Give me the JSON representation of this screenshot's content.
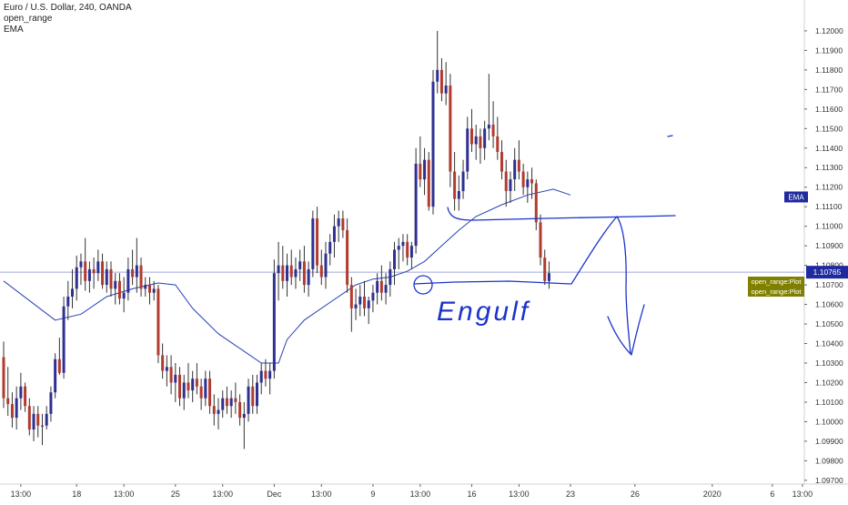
{
  "legend": {
    "symbol": "Euro / U.S. Dollar, 240, OANDA",
    "indicator_1": "open_range",
    "indicator_2": "EMA"
  },
  "colors": {
    "up_candle": "#2e3192",
    "down_candle": "#b23b2f",
    "wick": "#333333",
    "ema_line": "#2541b2",
    "price_line": "#9fa8da",
    "ema_tag": "#1f2a9e",
    "price_tag": "#1f2a9e",
    "open_range_tag": "#808000",
    "drawing": "#1a33cc"
  },
  "chart_data": {
    "type": "candlestick",
    "symbol": "EURUSD",
    "interval": "240",
    "ylim": [
      1.0969,
      1.1213
    ],
    "y_ticks": [
      1.12,
      1.119,
      1.118,
      1.117,
      1.116,
      1.115,
      1.114,
      1.113,
      1.112,
      1.111,
      1.11,
      1.109,
      1.108,
      1.107,
      1.106,
      1.105,
      1.104,
      1.103,
      1.102,
      1.101,
      1.1,
      1.099,
      1.098,
      1.097
    ],
    "y_tick_labels": [
      "1.12000",
      "1.11900",
      "1.11800",
      "1.11700",
      "1.11600",
      "1.11500",
      "1.11400",
      "1.11300",
      "1.11200",
      "1.11100",
      "1.11000",
      "1.10900",
      "1.10800",
      "1.10700",
      "1.10600",
      "1.10500",
      "1.10400",
      "1.10300",
      "1.10200",
      "1.10100",
      "1.10000",
      "1.09900",
      "1.09800",
      "1.09700"
    ],
    "x_ticks": [
      {
        "label": "13:00",
        "bar": 4
      },
      {
        "label": "18",
        "bar": 17
      },
      {
        "label": "13:00",
        "bar": 28
      },
      {
        "label": "25",
        "bar": 40
      },
      {
        "label": "13:00",
        "bar": 51
      },
      {
        "label": "Dec",
        "bar": 63
      },
      {
        "label": "13:00",
        "bar": 74
      },
      {
        "label": "9",
        "bar": 86
      },
      {
        "label": "13:00",
        "bar": 97
      },
      {
        "label": "16",
        "bar": 109
      },
      {
        "label": "13:00",
        "bar": 120
      },
      {
        "label": "23",
        "bar": 132
      },
      {
        "label": "26",
        "bar": 147
      },
      {
        "label": "2020",
        "bar": 165
      },
      {
        "label": "6",
        "bar": 179
      },
      {
        "label": "13:00",
        "bar": 186
      }
    ],
    "last_price": 1.10765,
    "last_price_label": "1.10765",
    "ema_tag_label": "EMA",
    "ema_tag_value": 1.1115,
    "open_range_tags": [
      "open_range:Plot",
      "open_range:Plot"
    ],
    "annotation_text": "Engulf",
    "ema": [
      [
        0,
        1.1072
      ],
      [
        6,
        1.1062
      ],
      [
        12,
        1.1052
      ],
      [
        18,
        1.1055
      ],
      [
        24,
        1.1064
      ],
      [
        30,
        1.1068
      ],
      [
        36,
        1.1071
      ],
      [
        40,
        1.107
      ],
      [
        44,
        1.1058
      ],
      [
        50,
        1.1045
      ],
      [
        56,
        1.1036
      ],
      [
        60,
        1.103
      ],
      [
        64,
        1.103
      ],
      [
        66,
        1.1042
      ],
      [
        70,
        1.1052
      ],
      [
        76,
        1.1061
      ],
      [
        82,
        1.107
      ],
      [
        86,
        1.1073
      ],
      [
        90,
        1.1074
      ],
      [
        94,
        1.1077
      ],
      [
        98,
        1.1082
      ],
      [
        102,
        1.109
      ],
      [
        106,
        1.1098
      ],
      [
        110,
        1.1105
      ],
      [
        116,
        1.1111
      ],
      [
        122,
        1.1116
      ],
      [
        128,
        1.1119
      ],
      [
        132,
        1.1116
      ]
    ],
    "candles": [
      [
        1.1033,
        1.1041,
        1.1007,
        1.1012
      ],
      [
        1.1012,
        1.1028,
        1.1003,
        1.1009
      ],
      [
        1.1009,
        1.1015,
        1.0997,
        1.1002
      ],
      [
        1.1002,
        1.1018,
        1.0996,
        1.1012
      ],
      [
        1.1012,
        1.1025,
        1.1006,
        1.1018
      ],
      [
        1.1018,
        1.102,
        1.1005,
        1.1008
      ],
      [
        1.1008,
        1.1012,
        1.0993,
        1.0996
      ],
      [
        1.0996,
        1.1008,
        1.099,
        1.1004
      ],
      [
        1.1004,
        1.1008,
        1.0992,
        1.0998
      ],
      [
        1.0998,
        1.1004,
        1.0988,
        1.0998
      ],
      [
        1.0998,
        1.1008,
        1.0996,
        1.1004
      ],
      [
        1.1004,
        1.1018,
        1.1,
        1.1015
      ],
      [
        1.1015,
        1.1035,
        1.1012,
        1.1032
      ],
      [
        1.1032,
        1.1043,
        1.1024,
        1.1025
      ],
      [
        1.1025,
        1.1064,
        1.1022,
        1.1059
      ],
      [
        1.1059,
        1.1072,
        1.1052,
        1.1064
      ],
      [
        1.1064,
        1.1078,
        1.1058,
        1.1068
      ],
      [
        1.1068,
        1.1085,
        1.1062,
        1.1079
      ],
      [
        1.1079,
        1.1086,
        1.107,
        1.1082
      ],
      [
        1.1082,
        1.1094,
        1.1067,
        1.1072
      ],
      [
        1.1072,
        1.1082,
        1.1066,
        1.1078
      ],
      [
        1.1078,
        1.1084,
        1.1068,
        1.1076
      ],
      [
        1.1076,
        1.1088,
        1.1072,
        1.1082
      ],
      [
        1.1082,
        1.1086,
        1.1068,
        1.107
      ],
      [
        1.107,
        1.1082,
        1.1066,
        1.1078
      ],
      [
        1.1078,
        1.1082,
        1.1064,
        1.1068
      ],
      [
        1.1068,
        1.1076,
        1.106,
        1.1072
      ],
      [
        1.1072,
        1.1076,
        1.106,
        1.1063
      ],
      [
        1.1063,
        1.1074,
        1.1056,
        1.1066
      ],
      [
        1.1066,
        1.1084,
        1.1062,
        1.1078
      ],
      [
        1.1078,
        1.1088,
        1.107,
        1.1074
      ],
      [
        1.1074,
        1.1094,
        1.1066,
        1.108
      ],
      [
        1.108,
        1.1084,
        1.1064,
        1.1068
      ],
      [
        1.1068,
        1.1074,
        1.1064,
        1.107
      ],
      [
        1.107,
        1.1074,
        1.106,
        1.1066
      ],
      [
        1.1066,
        1.1072,
        1.1062,
        1.1068
      ],
      [
        1.1068,
        1.107,
        1.103,
        1.1034
      ],
      [
        1.1034,
        1.104,
        1.1022,
        1.1026
      ],
      [
        1.1026,
        1.1034,
        1.1018,
        1.1028
      ],
      [
        1.1028,
        1.1034,
        1.1014,
        1.102
      ],
      [
        1.102,
        1.103,
        1.101,
        1.1024
      ],
      [
        1.1024,
        1.1028,
        1.1008,
        1.1012
      ],
      [
        1.1012,
        1.1024,
        1.1006,
        1.102
      ],
      [
        1.102,
        1.103,
        1.1012,
        1.1016
      ],
      [
        1.1016,
        1.1026,
        1.101,
        1.1022
      ],
      [
        1.1022,
        1.103,
        1.1014,
        1.1018
      ],
      [
        1.1018,
        1.1022,
        1.1006,
        1.1012
      ],
      [
        1.1012,
        1.1026,
        1.1008,
        1.1022
      ],
      [
        1.1022,
        1.1026,
        1.1004,
        1.1008
      ],
      [
        1.1008,
        1.1014,
        1.0998,
        1.1004
      ],
      [
        1.1004,
        1.1012,
        1.0996,
        1.1006
      ],
      [
        1.1006,
        1.1016,
        1.1002,
        1.1012
      ],
      [
        1.1012,
        1.1018,
        1.1004,
        1.1008
      ],
      [
        1.1008,
        1.1016,
        1.1002,
        1.1012
      ],
      [
        1.1012,
        1.102,
        1.1004,
        1.101
      ],
      [
        1.101,
        1.1014,
        1.0998,
        1.1002
      ],
      [
        1.1002,
        1.101,
        1.0986,
        1.1004
      ],
      [
        1.1004,
        1.1022,
        1.1,
        1.1018
      ],
      [
        1.1018,
        1.1024,
        1.1004,
        1.1008
      ],
      [
        1.1008,
        1.1024,
        1.1004,
        1.102
      ],
      [
        1.102,
        1.103,
        1.1014,
        1.1026
      ],
      [
        1.1026,
        1.1032,
        1.1018,
        1.1022
      ],
      [
        1.1022,
        1.103,
        1.1014,
        1.1026
      ],
      [
        1.1026,
        1.1083,
        1.1022,
        1.1076
      ],
      [
        1.1076,
        1.1092,
        1.1062,
        1.108
      ],
      [
        1.108,
        1.109,
        1.1068,
        1.1072
      ],
      [
        1.1072,
        1.1086,
        1.1064,
        1.108
      ],
      [
        1.108,
        1.1088,
        1.107,
        1.1074
      ],
      [
        1.1074,
        1.1084,
        1.1068,
        1.1078
      ],
      [
        1.1078,
        1.1088,
        1.1072,
        1.1082
      ],
      [
        1.1082,
        1.109,
        1.1066,
        1.107
      ],
      [
        1.107,
        1.1082,
        1.1064,
        1.1078
      ],
      [
        1.1078,
        1.1108,
        1.1074,
        1.1104
      ],
      [
        1.1104,
        1.111,
        1.1076,
        1.108
      ],
      [
        1.108,
        1.1088,
        1.107,
        1.1074
      ],
      [
        1.1074,
        1.1092,
        1.1068,
        1.1086
      ],
      [
        1.1086,
        1.1096,
        1.108,
        1.1092
      ],
      [
        1.1092,
        1.1106,
        1.1084,
        1.11
      ],
      [
        1.11,
        1.1108,
        1.1092,
        1.1104
      ],
      [
        1.1104,
        1.1108,
        1.1094,
        1.1098
      ],
      [
        1.1098,
        1.1104,
        1.1066,
        1.107
      ],
      [
        1.107,
        1.1074,
        1.1046,
        1.1058
      ],
      [
        1.1058,
        1.1068,
        1.1052,
        1.106
      ],
      [
        1.106,
        1.107,
        1.1054,
        1.1064
      ],
      [
        1.1064,
        1.1072,
        1.1054,
        1.1058
      ],
      [
        1.1058,
        1.1064,
        1.105,
        1.1062
      ],
      [
        1.1062,
        1.107,
        1.1056,
        1.1066
      ],
      [
        1.1066,
        1.1076,
        1.106,
        1.1072
      ],
      [
        1.1072,
        1.108,
        1.1062,
        1.1066
      ],
      [
        1.1066,
        1.1076,
        1.106,
        1.107
      ],
      [
        1.107,
        1.1082,
        1.1064,
        1.1078
      ],
      [
        1.1078,
        1.1092,
        1.107,
        1.1088
      ],
      [
        1.1088,
        1.1094,
        1.1078,
        1.109
      ],
      [
        1.109,
        1.1096,
        1.1082,
        1.1092
      ],
      [
        1.1092,
        1.1096,
        1.108,
        1.1084
      ],
      [
        1.1084,
        1.1092,
        1.1078,
        1.109
      ],
      [
        1.109,
        1.114,
        1.1086,
        1.1132
      ],
      [
        1.1132,
        1.1146,
        1.112,
        1.1124
      ],
      [
        1.1124,
        1.114,
        1.1116,
        1.1134
      ],
      [
        1.1134,
        1.1138,
        1.1108,
        1.111
      ],
      [
        1.111,
        1.118,
        1.1106,
        1.1174
      ],
      [
        1.1174,
        1.12,
        1.1168,
        1.118
      ],
      [
        1.118,
        1.1186,
        1.1164,
        1.1168
      ],
      [
        1.1168,
        1.1184,
        1.1162,
        1.1172
      ],
      [
        1.1172,
        1.1178,
        1.112,
        1.1128
      ],
      [
        1.1128,
        1.1138,
        1.1108,
        1.1114
      ],
      [
        1.1114,
        1.1126,
        1.1108,
        1.1118
      ],
      [
        1.1118,
        1.1134,
        1.1114,
        1.1128
      ],
      [
        1.1128,
        1.1156,
        1.1124,
        1.115
      ],
      [
        1.115,
        1.116,
        1.1138,
        1.1142
      ],
      [
        1.1142,
        1.1152,
        1.1134,
        1.1146
      ],
      [
        1.1146,
        1.115,
        1.1132,
        1.114
      ],
      [
        1.114,
        1.1154,
        1.1134,
        1.115
      ],
      [
        1.115,
        1.1178,
        1.1144,
        1.1152
      ],
      [
        1.1152,
        1.1164,
        1.114,
        1.1146
      ],
      [
        1.1146,
        1.1156,
        1.1134,
        1.1138
      ],
      [
        1.1138,
        1.1144,
        1.1124,
        1.1128
      ],
      [
        1.1128,
        1.1134,
        1.111,
        1.1118
      ],
      [
        1.1118,
        1.1128,
        1.1112,
        1.1124
      ],
      [
        1.1124,
        1.114,
        1.1118,
        1.1134
      ],
      [
        1.1134,
        1.1144,
        1.1124,
        1.1128
      ],
      [
        1.1128,
        1.1132,
        1.1116,
        1.112
      ],
      [
        1.112,
        1.1128,
        1.1112,
        1.1124
      ],
      [
        1.1124,
        1.113,
        1.1114,
        1.1122
      ],
      [
        1.1122,
        1.1124,
        1.1098,
        1.1102
      ],
      [
        1.1102,
        1.1106,
        1.108,
        1.1084
      ],
      [
        1.1084,
        1.1088,
        1.107,
        1.1072
      ],
      [
        1.1072,
        1.1082,
        1.1068,
        1.1076
      ]
    ]
  }
}
